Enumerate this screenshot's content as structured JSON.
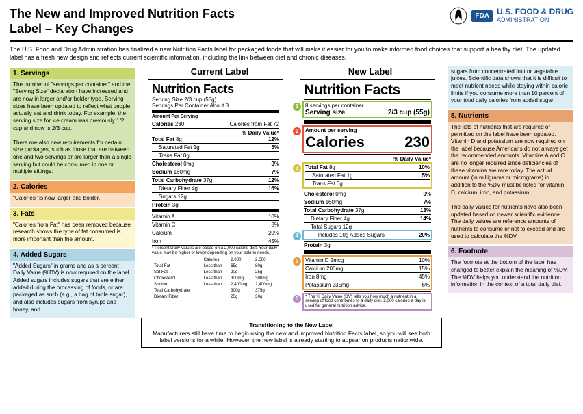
{
  "header": {
    "title_line1": "The New and Improved Nutrition Facts",
    "title_line2": "Label – Key Changes",
    "fda_badge": "FDA",
    "fda_name1": "U.S. FOOD & DRUG",
    "fda_name2": "ADMINISTRATION"
  },
  "intro": "The U.S. Food and Drug Administration has finalized a new Nutrition Facts label for packaged foods that will make it easier for you to make informed food choices that support a healthy diet. The updated label has a fresh new design and reflects current scientific information, including the link between diet and chronic diseases.",
  "left": {
    "s1_hdr": "1. Servings",
    "s1_p1": "The number of \"servings per container\" and the \"Serving Size\" declaration have increased and are now in larger and/or bolder type. Serving sizes have been updated to reflect what people actually eat and drink today. For example, the serving size for ice cream was previously 1/2 cup and now is 2/3 cup.",
    "s1_p2": "There are also new requirements for certain size packages, such as those that are between one and two servings or are larger than a single serving but could be consumed in one or multiple sittings.",
    "s2_hdr": "2. Calories",
    "s2_p1": "\"Calories\" is now larger and bolder.",
    "s3_hdr": "3. Fats",
    "s3_p1": "\"Calories from Fat\" has been removed because research shows the type of fat consumed is more important than the amount.",
    "s4_hdr": "4. Added Sugars",
    "s4_p1": "\"Added Sugars\" in grams and as a percent Daily Value (%DV) is now required on the label. Added sugars includes sugars that are either added during the processing of foods, or are packaged as such (e.g., a bag of table sugar), and also includes sugars from syrups and honey, and"
  },
  "right": {
    "cont1": "sugars from concentrated fruit or vegetable juices. Scientific data shows that it is difficult to meet nutrient needs while staying within calorie limits if you consume more than 10 percent of your total daily calories from added sugar.",
    "s5_hdr": "5. Nutrients",
    "s5_p1": "The lists of nutrients that are required or permitted on the label have been updated. Vitamin D and potassium are now required on the label because Americans do not always get the recommended amounts. Vitamins A and C are no longer required since deficiencies of these vitamins are rare today. The actual amount (in milligrams or micrograms) in addition to the %DV must be listed for vitamin D, calcium, iron, and potassium.",
    "s5_p2": "The daily values for nutrients have also been updated based on newer scientific evidence. The daily values are reference amounts of nutrients to consume or not to exceed and are used to calculate the %DV.",
    "s6_hdr": "6. Footnote",
    "s6_p1": "The footnote at the bottom of the label has changed to better explain the meaning of %DV. The %DV helps you understand the nutrition information in the context of a total daily diet."
  },
  "mid": {
    "current_title": "Current Label",
    "new_title": "New Label",
    "transition_title": "Transitioning to the New Label",
    "transition_body": "Manufacturers still have time to begin using the new and improved Nutrition Facts label, so you will see both label versions for a while. However, the new label is already starting to appear on products nationwide."
  },
  "current_label": {
    "title": "Nutrition Facts",
    "serving_size": "Serving Size 2/3 cup (55g)",
    "servings_per": "Servings Per Container About 8",
    "amount_per": "Amount Per Serving",
    "calories_lbl": "Calories",
    "calories_val": "230",
    "calfromfat": "Calories from Fat 72",
    "dv_hdr": "% Daily Value*",
    "rows": [
      {
        "l": "Total Fat",
        "q": "8g",
        "dv": "12%",
        "b": true
      },
      {
        "l": "Saturated Fat",
        "q": "1g",
        "dv": "5%",
        "indent": 1
      },
      {
        "l": "Trans Fat",
        "q": "0g",
        "dv": "",
        "indent": 1,
        "it": true
      },
      {
        "l": "Cholesterol",
        "q": "0mg",
        "dv": "0%",
        "b": true
      },
      {
        "l": "Sodium",
        "q": "160mg",
        "dv": "7%",
        "b": true
      },
      {
        "l": "Total Carbohydrate",
        "q": "37g",
        "dv": "12%",
        "b": true
      },
      {
        "l": "Dietary Fiber",
        "q": "4g",
        "dv": "16%",
        "indent": 1
      },
      {
        "l": "Sugars",
        "q": "12g",
        "dv": "",
        "indent": 1
      },
      {
        "l": "Protein",
        "q": "3g",
        "dv": "",
        "b": true
      }
    ],
    "vits": [
      {
        "l": "Vitamin A",
        "dv": "10%"
      },
      {
        "l": "Vitamin C",
        "dv": "8%"
      },
      {
        "l": "Calcium",
        "dv": "20%"
      },
      {
        "l": "Iron",
        "dv": "45%"
      }
    ],
    "foot1": "* Percent Daily Values are based on a 2,000 calorie diet. Your daily value may be higher or lower depending on your calorie needs.",
    "foot_cols": [
      "Calories:",
      "2,000",
      "2,500"
    ],
    "foot_rows": [
      [
        "Total Fat",
        "Less than",
        "65g",
        "80g"
      ],
      [
        "Sat Fat",
        "Less than",
        "20g",
        "25g"
      ],
      [
        "Cholesterol",
        "Less than",
        "300mg",
        "300mg"
      ],
      [
        "Sodium",
        "Less than",
        "2,400mg",
        "2,400mg"
      ],
      [
        "Total Carbohydrate",
        "",
        "300g",
        "375g"
      ],
      [
        "Dietary Fiber",
        "",
        "25g",
        "30g"
      ]
    ]
  },
  "new_label": {
    "title": "Nutrition Facts",
    "servings": "8 servings per container",
    "ss_lbl": "Serving size",
    "ss_val": "2/3 cup (55g)",
    "amount_per": "Amount per serving",
    "calories_lbl": "Calories",
    "calories_val": "230",
    "dv_hdr": "% Daily Value*",
    "rows": [
      {
        "l": "Total Fat",
        "q": "8g",
        "dv": "10%",
        "b": true
      },
      {
        "l": "Saturated Fat",
        "q": "1g",
        "dv": "5%",
        "indent": 1
      },
      {
        "l": "Trans Fat",
        "q": "0g",
        "dv": "",
        "indent": 1,
        "it": true
      },
      {
        "l": "Cholesterol",
        "q": "0mg",
        "dv": "0%",
        "b": true
      },
      {
        "l": "Sodium",
        "q": "160mg",
        "dv": "7%",
        "b": true
      },
      {
        "l": "Total Carbohydrate",
        "q": "37g",
        "dv": "13%",
        "b": true
      },
      {
        "l": "Dietary Fiber",
        "q": "4g",
        "dv": "14%",
        "indent": 1
      },
      {
        "l": "Total Sugars",
        "q": "12g",
        "dv": "",
        "indent": 1
      },
      {
        "l": "Includes 10g Added Sugars",
        "q": "",
        "dv": "20%",
        "indent": 2
      },
      {
        "l": "Protein",
        "q": "3g",
        "dv": "",
        "b": true
      }
    ],
    "vits": [
      {
        "l": "Vitamin D 2mcg",
        "dv": "10%"
      },
      {
        "l": "Calcium 200mg",
        "dv": "15%"
      },
      {
        "l": "Iron 8mg",
        "dv": "45%"
      },
      {
        "l": "Potassium 235mg",
        "dv": "6%"
      }
    ],
    "foot": "* The % Daily Value (DV) tells you how much a nutrient in a serving of food contributes to a daily diet. 2,000 calories a day is used for general nutrition advice.",
    "badges": {
      "c1": "#8bbf3f",
      "c2": "#e8523c",
      "c3": "#d6c43a",
      "c4": "#6fb8d6",
      "c5": "#e89a3c",
      "c6": "#b88bc4"
    }
  }
}
